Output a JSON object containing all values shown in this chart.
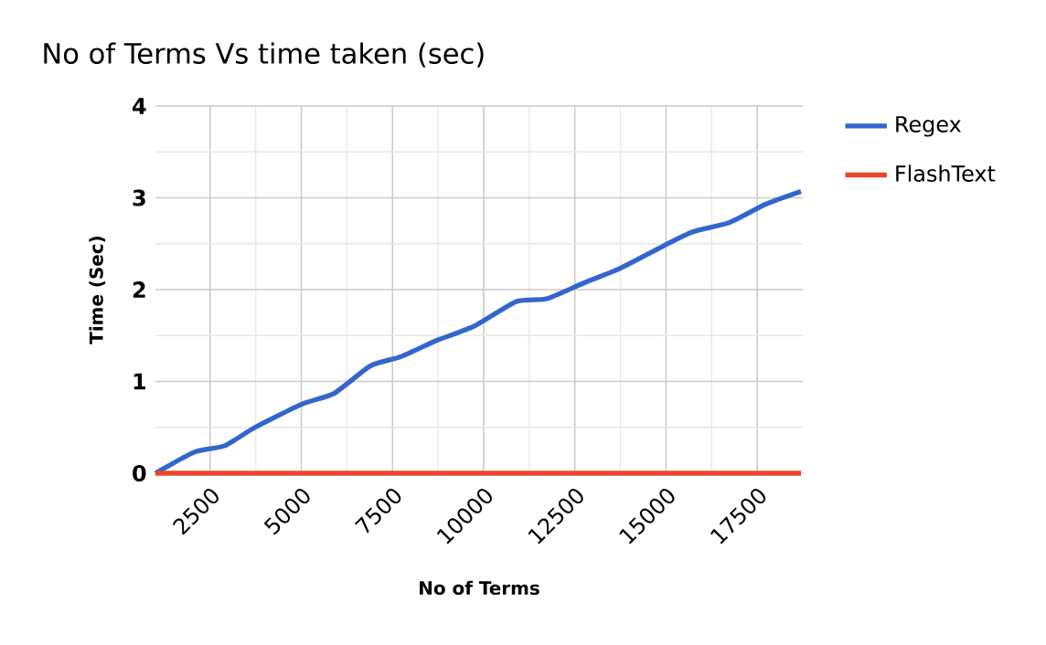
{
  "chart_data": {
    "type": "line",
    "title": "No of Terms Vs time taken (sec)",
    "xlabel": "No of Terms",
    "ylabel": "Time (Sec)",
    "x": [
      1000,
      2067,
      2900,
      3733,
      5000,
      5900,
      6900,
      7733,
      8733,
      9733,
      10900,
      11733,
      12733,
      13733,
      14900,
      15733,
      16733,
      17733,
      18700
    ],
    "series": [
      {
        "name": "Regex",
        "color": "#3366cc",
        "values": [
          0,
          0.23,
          0.3,
          0.5,
          0.75,
          0.87,
          1.17,
          1.27,
          1.45,
          1.6,
          1.87,
          1.9,
          2.07,
          2.23,
          2.47,
          2.63,
          2.73,
          2.93,
          3.07
        ]
      },
      {
        "name": "FlashText",
        "color": "#e8472c",
        "values": [
          0,
          0,
          0,
          0,
          0,
          0,
          0,
          0,
          0,
          0,
          0,
          0,
          0,
          0,
          0,
          0,
          0,
          0,
          0
        ]
      }
    ],
    "xlim": [
      1000,
      18750
    ],
    "ylim": [
      0,
      4
    ],
    "xticks": [
      2500,
      5000,
      7500,
      10000,
      12500,
      15000,
      17500
    ],
    "yticks": [
      0,
      1,
      2,
      3,
      4
    ],
    "grid": true,
    "legend": "right",
    "marker": "none",
    "line_style": "solid"
  }
}
